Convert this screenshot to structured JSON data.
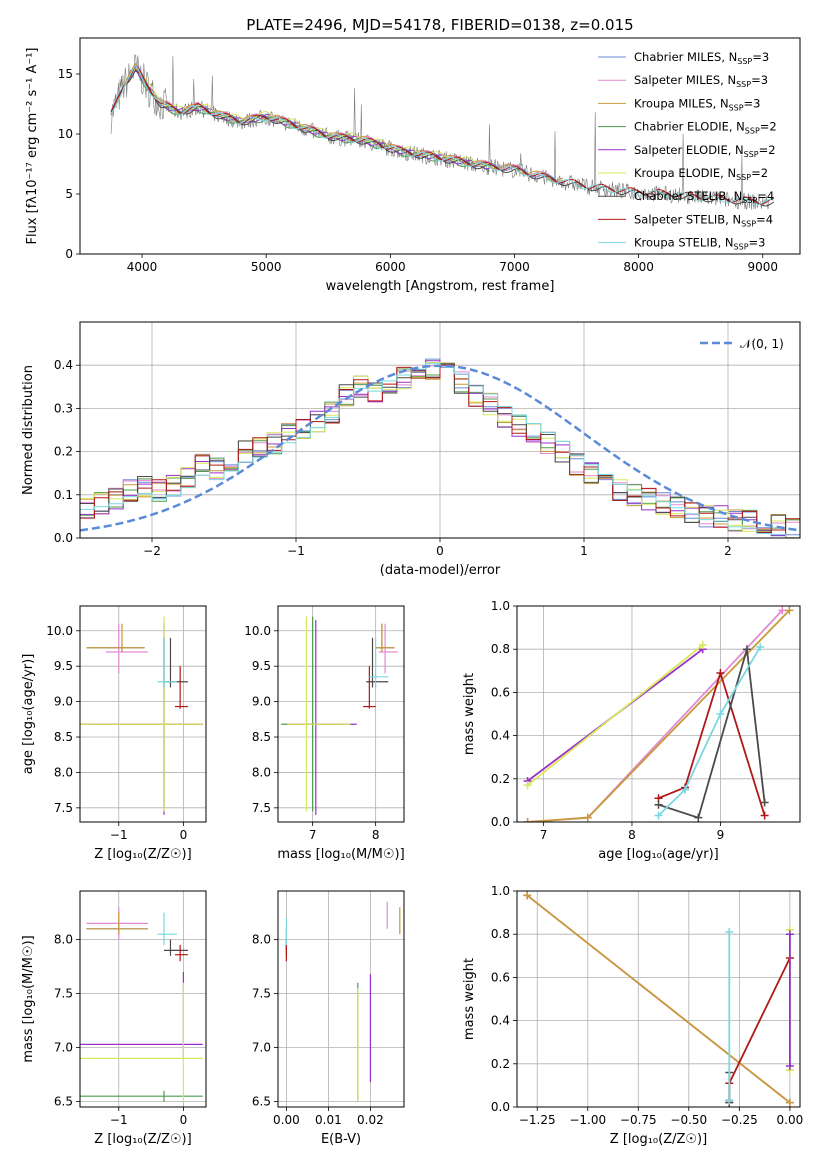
{
  "figure": {
    "title": "PLATE=2496, MJD=54178, FIBERID=0138, z=0.015"
  },
  "colors": {
    "Chabrier MILES": "#6a8cd8",
    "Salpeter MILES": "#e28ad2",
    "Kroupa MILES": "#c89a3a",
    "Chabrier ELODIE": "#4f9a4f",
    "Salpeter ELODIE": "#9a30c8",
    "Kroupa ELODIE": "#d8e85a",
    "Chabrier STELIB": "#4a4a4a",
    "Salpeter STELIB": "#b01818",
    "Kroupa STELIB": "#7ad8e0",
    "data": "#7a7a7a",
    "gaussian": "#5a8ad8",
    "grid": "#b0b0b0"
  },
  "chart_data": [
    {
      "id": "spectrum",
      "type": "line",
      "xlabel": "wavelength [Angstrom, rest frame]",
      "ylabel": "Flux [fλ10⁻¹⁷ erg cm⁻² s⁻¹ A⁻¹]",
      "xlim": [
        3500,
        9300
      ],
      "ylim": [
        0,
        18
      ],
      "xticks": [
        "4000",
        "5000",
        "6000",
        "7000",
        "8000",
        "9000"
      ],
      "yticks": [
        "0",
        "5",
        "10",
        "15"
      ],
      "legend_position": "top-right",
      "legend": [
        {
          "label": "Chabrier MILES, N",
          "sub": "SSP",
          "tail": "=3",
          "series": "Chabrier MILES"
        },
        {
          "label": "Salpeter MILES, N",
          "sub": "SSP",
          "tail": "=3",
          "series": "Salpeter MILES"
        },
        {
          "label": "Kroupa MILES, N",
          "sub": "SSP",
          "tail": "=3",
          "series": "Kroupa MILES"
        },
        {
          "label": "Chabrier ELODIE, N",
          "sub": "SSP",
          "tail": "=2",
          "series": "Chabrier ELODIE"
        },
        {
          "label": "Salpeter ELODIE, N",
          "sub": "SSP",
          "tail": "=2",
          "series": "Salpeter ELODIE"
        },
        {
          "label": "Kroupa ELODIE, N",
          "sub": "SSP",
          "tail": "=2",
          "series": "Kroupa ELODIE"
        },
        {
          "label": "Chabrier STELIB, N",
          "sub": "SSP",
          "tail": "=4",
          "series": "Chabrier STELIB"
        },
        {
          "label": "Salpeter STELIB, N",
          "sub": "SSP",
          "tail": "=4",
          "series": "Salpeter STELIB"
        },
        {
          "label": "Kroupa STELIB, N",
          "sub": "SSP",
          "tail": "=3",
          "series": "Kroupa STELIB"
        }
      ],
      "continuum": [
        [
          3750,
          11.5
        ],
        [
          3850,
          14.0
        ],
        [
          3950,
          15.5
        ],
        [
          4050,
          13.8
        ],
        [
          4150,
          12.5
        ],
        [
          4300,
          11.8
        ],
        [
          4450,
          12.2
        ],
        [
          4600,
          11.6
        ],
        [
          4800,
          11.0
        ],
        [
          5000,
          11.4
        ],
        [
          5200,
          10.8
        ],
        [
          5500,
          9.8
        ],
        [
          5800,
          9.4
        ],
        [
          6100,
          8.5
        ],
        [
          6400,
          8.0
        ],
        [
          6700,
          7.4
        ],
        [
          7000,
          7.0
        ],
        [
          7300,
          6.2
        ],
        [
          7600,
          5.6
        ],
        [
          7900,
          5.2
        ],
        [
          8200,
          5.0
        ],
        [
          8600,
          4.6
        ],
        [
          9000,
          4.3
        ]
      ],
      "model_offsets": {
        "Chabrier MILES": 0.1,
        "Salpeter MILES": 0.2,
        "Kroupa MILES": 0.15,
        "Chabrier ELODIE": -0.1,
        "Salpeter ELODIE": 0.05,
        "Kroupa ELODIE": 0.25,
        "Chabrier STELIB": -0.05,
        "Salpeter STELIB": 0.1,
        "Kroupa STELIB": 0.0
      },
      "model_ranges": {
        "Chabrier MILES": [
          3750,
          7400
        ],
        "Salpeter MILES": [
          3750,
          7400
        ],
        "Kroupa MILES": [
          3750,
          7400
        ],
        "Chabrier ELODIE": [
          3900,
          6800
        ],
        "Salpeter ELODIE": [
          3900,
          6800
        ],
        "Kroupa ELODIE": [
          3900,
          6800
        ],
        "Chabrier STELIB": [
          3750,
          9100
        ],
        "Salpeter STELIB": [
          3750,
          9100
        ],
        "Kroupa STELIB": [
          3750,
          9100
        ]
      }
    },
    {
      "id": "residuals",
      "type": "histogram",
      "xlabel": "(data-model)/error",
      "ylabel": "Normed distribution",
      "xlim": [
        -2.5,
        2.5
      ],
      "ylim": [
        0,
        0.5
      ],
      "xticks": [
        "−2",
        "−1",
        "0",
        "1",
        "2"
      ],
      "yticks": [
        "0.0",
        "0.1",
        "0.2",
        "0.3",
        "0.4"
      ],
      "legend_label": "𝒩(0, 1)",
      "legend_position": "top-right",
      "bin_width": 0.1,
      "bin_start": -2.5,
      "base_values": [
        0.07,
        0.08,
        0.09,
        0.11,
        0.12,
        0.11,
        0.12,
        0.14,
        0.17,
        0.16,
        0.18,
        0.2,
        0.21,
        0.22,
        0.24,
        0.25,
        0.27,
        0.29,
        0.33,
        0.35,
        0.34,
        0.36,
        0.37,
        0.38,
        0.39,
        0.38,
        0.36,
        0.33,
        0.31,
        0.28,
        0.26,
        0.24,
        0.22,
        0.2,
        0.17,
        0.15,
        0.13,
        0.11,
        0.1,
        0.09,
        0.08,
        0.07,
        0.06,
        0.05,
        0.05,
        0.04,
        0.04,
        0.03,
        0.03,
        0.02
      ]
    },
    {
      "id": "age-vs-Z",
      "type": "scatter",
      "xlabel": "Z [log₁₀(Z/Z☉)]",
      "ylabel": "age [log₁₀(age/yr)]",
      "xlim": [
        -1.6,
        0.35
      ],
      "ylim": [
        7.3,
        10.35
      ],
      "xticks": [
        "−1",
        "0"
      ],
      "yticks": [
        "7.5",
        "8.0",
        "8.5",
        "9.0",
        "9.5",
        "10.0"
      ],
      "points": [
        {
          "series": "Chabrier MILES",
          "x": -0.95,
          "y": 9.76,
          "xe": [
            -1.5,
            -0.6
          ],
          "ye": [
            9.7,
            9.8
          ]
        },
        {
          "series": "Salpeter MILES",
          "x": -1.0,
          "y": 9.7,
          "xe": [
            -1.2,
            -0.55
          ],
          "ye": [
            9.4,
            10.1
          ]
        },
        {
          "series": "Kroupa MILES",
          "x": -0.95,
          "y": 9.76,
          "xe": [
            -1.5,
            -0.6
          ],
          "ye": [
            9.7,
            10.1
          ]
        },
        {
          "series": "Chabrier ELODIE",
          "x": -0.3,
          "y": 8.68,
          "xe": [
            -1.6,
            0.3
          ],
          "ye": [
            7.5,
            9.9
          ]
        },
        {
          "series": "Salpeter ELODIE",
          "x": -0.3,
          "y": 8.68,
          "xe": [
            -1.6,
            0.3
          ],
          "ye": [
            7.4,
            10.1
          ]
        },
        {
          "series": "Kroupa ELODIE",
          "x": -0.3,
          "y": 8.68,
          "xe": [
            -1.6,
            0.3
          ],
          "ye": [
            7.45,
            10.2
          ]
        },
        {
          "series": "Chabrier STELIB",
          "x": -0.2,
          "y": 9.28,
          "xe": [
            -0.3,
            0.07
          ],
          "ye": [
            9.2,
            9.9
          ]
        },
        {
          "series": "Salpeter STELIB",
          "x": -0.05,
          "y": 8.93,
          "xe": [
            -0.13,
            0.07
          ],
          "ye": [
            8.9,
            9.5
          ]
        },
        {
          "series": "Kroupa STELIB",
          "x": -0.3,
          "y": 9.28,
          "xe": [
            -0.4,
            -0.1
          ],
          "ye": [
            9.2,
            9.9
          ]
        }
      ]
    },
    {
      "id": "age-vs-mass",
      "type": "scatter",
      "xlabel": "mass [log₁₀(M/M☉)]",
      "ylabel": "",
      "xlim": [
        6.45,
        8.45
      ],
      "ylim": [
        7.3,
        10.35
      ],
      "xticks": [
        "7",
        "8"
      ],
      "yticks": [
        "7.5",
        "8.0",
        "8.5",
        "9.0",
        "9.5",
        "10.0"
      ],
      "points": [
        {
          "series": "Chabrier MILES",
          "x": 8.1,
          "y": 9.76,
          "xe": [
            8.0,
            8.3
          ],
          "ye": [
            9.7,
            10.1
          ]
        },
        {
          "series": "Salpeter MILES",
          "x": 8.15,
          "y": 9.7,
          "xe": [
            8.05,
            8.35
          ],
          "ye": [
            9.4,
            10.1
          ]
        },
        {
          "series": "Kroupa MILES",
          "x": 8.1,
          "y": 9.76,
          "xe": [
            8.0,
            8.3
          ],
          "ye": [
            9.7,
            10.1
          ]
        },
        {
          "series": "Chabrier ELODIE",
          "x": 7.0,
          "y": 8.68,
          "xe": [
            6.5,
            7.5
          ],
          "ye": [
            7.45,
            10.2
          ]
        },
        {
          "series": "Salpeter ELODIE",
          "x": 7.05,
          "y": 8.68,
          "xe": [
            6.6,
            7.7
          ],
          "ye": [
            7.4,
            10.15
          ]
        },
        {
          "series": "Kroupa ELODIE",
          "x": 6.9,
          "y": 8.68,
          "xe": [
            6.6,
            7.6
          ],
          "ye": [
            7.45,
            10.2
          ]
        },
        {
          "series": "Chabrier STELIB",
          "x": 7.95,
          "y": 9.28,
          "xe": [
            7.85,
            8.2
          ],
          "ye": [
            9.2,
            9.9
          ]
        },
        {
          "series": "Salpeter STELIB",
          "x": 7.9,
          "y": 8.93,
          "xe": [
            7.8,
            8.0
          ],
          "ye": [
            8.9,
            9.5
          ]
        },
        {
          "series": "Kroupa STELIB",
          "x": 8.0,
          "y": 9.35,
          "xe": [
            7.9,
            8.2
          ],
          "ye": [
            9.2,
            9.9
          ]
        }
      ]
    },
    {
      "id": "massweight-vs-age",
      "type": "line",
      "xlabel": "age [log₁₀(age/yr)]",
      "ylabel": "mass weight",
      "xlim": [
        6.7,
        9.9
      ],
      "ylim": [
        0,
        1
      ],
      "xticks": [
        "7",
        "8",
        "9"
      ],
      "yticks": [
        "0.0",
        "0.2",
        "0.4",
        "0.6",
        "0.8",
        "1.0"
      ],
      "series": [
        {
          "name": "Salpeter ELODIE",
          "x": [
            6.82,
            8.8
          ],
          "y": [
            0.19,
            0.8
          ]
        },
        {
          "name": "Kroupa ELODIE",
          "x": [
            6.82,
            8.8
          ],
          "y": [
            0.17,
            0.82
          ]
        },
        {
          "name": "Salpeter MILES",
          "x": [
            6.82,
            7.5,
            9.7
          ],
          "y": [
            0.0,
            0.02,
            0.98
          ]
        },
        {
          "name": "Kroupa MILES",
          "x": [
            6.82,
            7.5,
            9.78
          ],
          "y": [
            0.0,
            0.02,
            0.98
          ]
        },
        {
          "name": "Salpeter STELIB",
          "x": [
            8.3,
            8.6,
            9.0,
            9.5
          ],
          "y": [
            0.11,
            0.16,
            0.69,
            0.03
          ]
        },
        {
          "name": "Chabrier STELIB",
          "x": [
            8.3,
            8.75,
            9.3,
            9.5
          ],
          "y": [
            0.08,
            0.02,
            0.8,
            0.09
          ]
        },
        {
          "name": "Kroupa STELIB",
          "x": [
            8.3,
            8.6,
            9.0,
            9.45
          ],
          "y": [
            0.03,
            0.15,
            0.5,
            0.81
          ]
        }
      ]
    },
    {
      "id": "mass-vs-Z",
      "type": "scatter",
      "xlabel": "Z [log₁₀(Z/Z☉)]",
      "ylabel": "mass [log₁₀(M/M☉)]",
      "xlim": [
        -1.6,
        0.35
      ],
      "ylim": [
        6.45,
        8.45
      ],
      "xticks": [
        "−1",
        "0"
      ],
      "yticks": [
        "6.5",
        "7.0",
        "7.5",
        "8.0"
      ],
      "points": [
        {
          "series": "Chabrier MILES",
          "x": -1.0,
          "y": 8.1,
          "xe": [
            -1.5,
            -0.55
          ],
          "ye": [
            8.05,
            8.15
          ]
        },
        {
          "series": "Salpeter MILES",
          "x": -1.0,
          "y": 8.15,
          "xe": [
            -1.5,
            -0.55
          ],
          "ye": [
            8.0,
            8.3
          ]
        },
        {
          "series": "Kroupa MILES",
          "x": -1.0,
          "y": 8.1,
          "xe": [
            -1.5,
            -0.55
          ],
          "ye": [
            8.05,
            8.25
          ]
        },
        {
          "series": "Chabrier ELODIE",
          "x": -0.3,
          "y": 6.55,
          "xe": [
            -1.6,
            0.3
          ],
          "ye": [
            6.5,
            6.6
          ]
        },
        {
          "series": "Salpeter ELODIE",
          "x": 0.0,
          "y": 7.03,
          "xe": [
            -1.6,
            0.3
          ],
          "ye": [
            6.9,
            7.7
          ]
        },
        {
          "series": "Kroupa ELODIE",
          "x": 0.0,
          "y": 6.9,
          "xe": [
            -1.6,
            0.3
          ],
          "ye": [
            6.5,
            7.6
          ]
        },
        {
          "series": "Chabrier STELIB",
          "x": -0.2,
          "y": 7.9,
          "xe": [
            -0.3,
            0.07
          ],
          "ye": [
            7.85,
            8.0
          ]
        },
        {
          "series": "Salpeter STELIB",
          "x": -0.05,
          "y": 7.86,
          "xe": [
            -0.13,
            0.07
          ],
          "ye": [
            7.8,
            7.95
          ]
        },
        {
          "series": "Kroupa STELIB",
          "x": -0.3,
          "y": 8.05,
          "xe": [
            -0.4,
            -0.1
          ],
          "ye": [
            7.95,
            8.25
          ]
        }
      ]
    },
    {
      "id": "mass-vs-ebv",
      "type": "scatter",
      "xlabel": "E(B-V)",
      "ylabel": "",
      "xlim": [
        -0.002,
        0.028
      ],
      "ylim": [
        6.45,
        8.45
      ],
      "xticks": [
        "0.00",
        "0.01",
        "0.02"
      ],
      "yticks": [
        "6.5",
        "7.0",
        "7.5",
        "8.0"
      ],
      "points": [
        {
          "series": "Chabrier MILES",
          "x": 0.0,
          "y": 8.0,
          "xe": [
            0.0,
            0.0
          ],
          "ye": [
            7.9,
            8.1
          ]
        },
        {
          "series": "Salpeter MILES",
          "x": 0.024,
          "y": 8.2,
          "xe": [
            0.024,
            0.024
          ],
          "ye": [
            8.1,
            8.35
          ]
        },
        {
          "series": "Kroupa MILES",
          "x": 0.027,
          "y": 8.15,
          "xe": [
            0.027,
            0.027
          ],
          "ye": [
            8.05,
            8.3
          ]
        },
        {
          "series": "Chabrier ELODIE",
          "x": 0.017,
          "y": 7.0,
          "xe": [
            0.017,
            0.017
          ],
          "ye": [
            6.5,
            7.6
          ]
        },
        {
          "series": "Salpeter ELODIE",
          "x": 0.02,
          "y": 7.2,
          "xe": [
            0.02,
            0.02
          ],
          "ye": [
            6.68,
            7.68
          ]
        },
        {
          "series": "Kroupa ELODIE",
          "x": 0.017,
          "y": 7.05,
          "xe": [
            0.017,
            0.017
          ],
          "ye": [
            6.5,
            7.55
          ]
        },
        {
          "series": "Chabrier STELIB",
          "x": 0.0,
          "y": 7.9,
          "xe": [
            0.0,
            0.0
          ],
          "ye": [
            7.85,
            8.0
          ]
        },
        {
          "series": "Salpeter STELIB",
          "x": 0.0,
          "y": 7.86,
          "xe": [
            0.0,
            0.0
          ],
          "ye": [
            7.8,
            7.95
          ]
        },
        {
          "series": "Kroupa STELIB",
          "x": 0.0,
          "y": 8.05,
          "xe": [
            0.0,
            0.0
          ],
          "ye": [
            7.95,
            8.2
          ]
        }
      ]
    },
    {
      "id": "massweight-vs-Z",
      "type": "line",
      "xlabel": "Z [log₁₀(Z/Z☉)]",
      "ylabel": "mass weight",
      "xlim": [
        -1.35,
        0.05
      ],
      "ylim": [
        0,
        1
      ],
      "xticks": [
        "−1.25",
        "−1.00",
        "−0.75",
        "−0.50",
        "−0.25",
        "0.00"
      ],
      "yticks": [
        "0.0",
        "0.2",
        "0.4",
        "0.6",
        "0.8",
        "1.0"
      ],
      "series": [
        {
          "name": "Salpeter MILES",
          "x": [
            -1.3,
            0.0
          ],
          "y": [
            0.98,
            0.02
          ]
        },
        {
          "name": "Kroupa MILES",
          "x": [
            -1.3,
            0.0
          ],
          "y": [
            0.98,
            0.02
          ]
        },
        {
          "name": "Salpeter STELIB",
          "x": [
            -0.3,
            -0.3,
            0.0
          ],
          "y": [
            0.03,
            0.11,
            0.69
          ]
        },
        {
          "name": "Chabrier STELIB",
          "x": [
            -0.3,
            -0.3
          ],
          "y": [
            0.02,
            0.16
          ]
        },
        {
          "name": "Kroupa STELIB",
          "x": [
            -0.3,
            -0.3
          ],
          "y": [
            0.03,
            0.81
          ]
        },
        {
          "name": "Kroupa ELODIE",
          "x": [
            0.0,
            0.0
          ],
          "y": [
            0.17,
            0.82
          ]
        },
        {
          "name": "Salpeter ELODIE",
          "x": [
            0.0,
            0.0
          ],
          "y": [
            0.19,
            0.8
          ]
        }
      ]
    }
  ]
}
